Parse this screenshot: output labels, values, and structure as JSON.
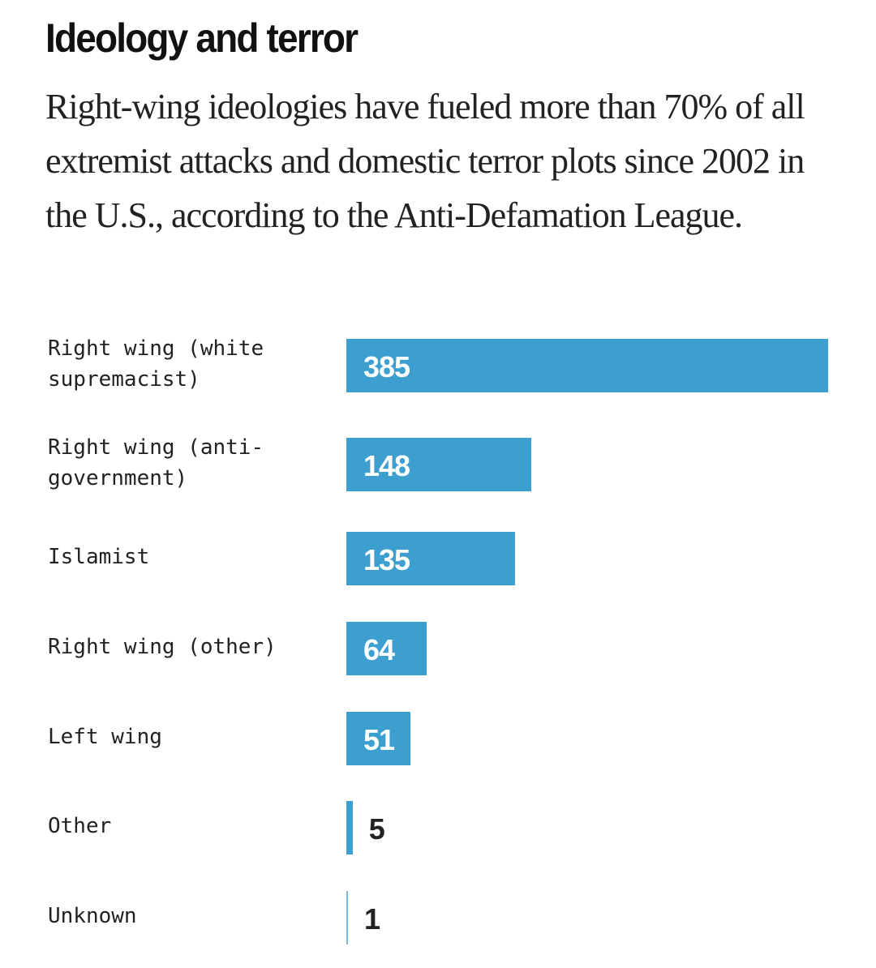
{
  "chart_data": {
    "type": "bar",
    "orientation": "horizontal",
    "title": "Ideology and terror",
    "subtitle": "Right-wing ideologies have fueled more than 70% of all extremist attacks and domestic terror plots since 2002 in the U.S., according to the Anti-Defamation League.",
    "categories": [
      "Right wing (white supremacist)",
      "Right wing (anti-government)",
      "Islamist",
      "Right wing (other)",
      "Left wing",
      "Other",
      "Unknown"
    ],
    "category_lines": [
      [
        "Right wing (white",
        "supremacist)"
      ],
      [
        "Right wing (anti-",
        "government)"
      ],
      [
        "Islamist"
      ],
      [
        "Right wing (other)"
      ],
      [
        "Left wing"
      ],
      [
        "Other"
      ],
      [
        "Unknown"
      ]
    ],
    "values": [
      385,
      148,
      135,
      64,
      51,
      5,
      1
    ],
    "xlim": [
      0,
      385
    ],
    "grid": false,
    "bar_color": "#3d9fd0",
    "label_inside_color": "#ffffff",
    "label_outside_color": "#222222"
  }
}
